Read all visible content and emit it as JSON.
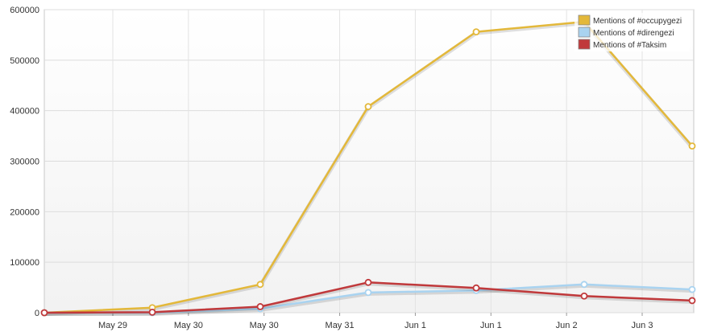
{
  "chart_data": {
    "type": "line",
    "title": "",
    "xlabel": "",
    "ylabel": "",
    "ylim": [
      0,
      600000
    ],
    "y_ticks": [
      "0",
      "100000",
      "200000",
      "300000",
      "400000",
      "500000",
      "600000"
    ],
    "x_tick_labels": [
      "May 29",
      "May 30",
      "May 30",
      "May 31",
      "Jun 1",
      "Jun 1",
      "Jun 2",
      "Jun 3"
    ],
    "grid": true,
    "legend": "top-right",
    "series": [
      {
        "name": "Mentions of #occupygezi",
        "color": "#e3b83a",
        "values": [
          0,
          10000,
          56000,
          408000,
          556000,
          576000,
          330000
        ]
      },
      {
        "name": "Mentions of #direngezi",
        "color": "#a9d3f0",
        "values": [
          0,
          0,
          8000,
          40000,
          44000,
          56000,
          46000
        ]
      },
      {
        "name": "Mentions of #Taksim",
        "color": "#c0393b",
        "values": [
          0,
          1000,
          12000,
          60000,
          49000,
          33000,
          24000
        ]
      }
    ]
  }
}
